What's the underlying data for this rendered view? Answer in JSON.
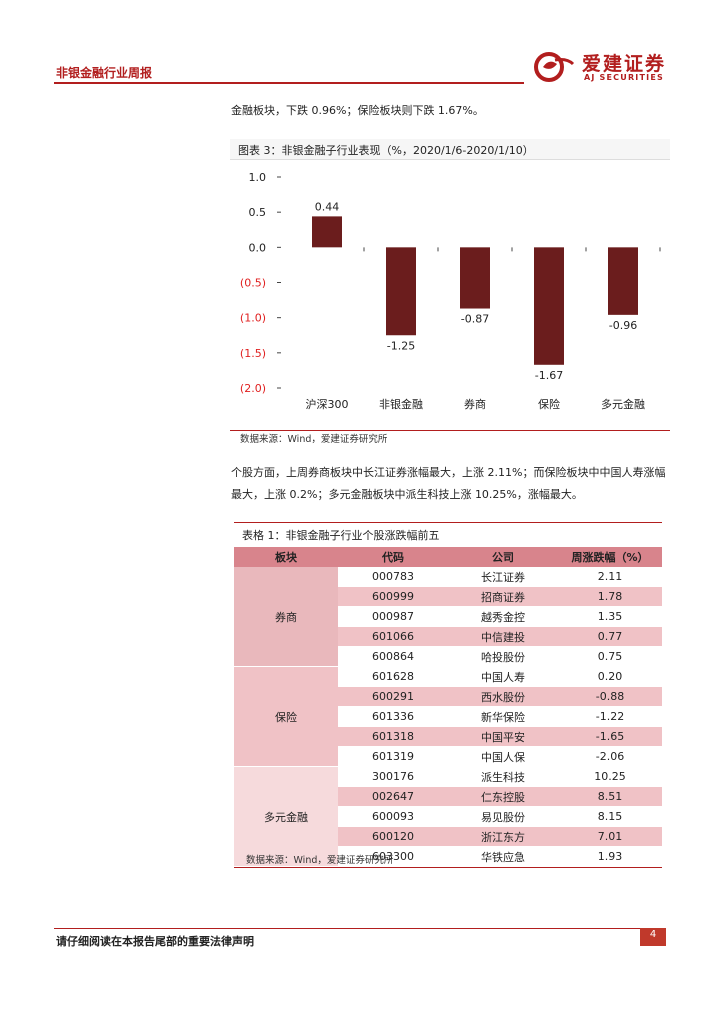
{
  "header": {
    "report_title": "非银金融行业周报",
    "brand_cn": "爱建证券",
    "brand_en": "AJ SECURITIES"
  },
  "intro_text": "金融板块，下跌 0.96%；保险板块则下跌 1.67%。",
  "chart": {
    "caption": "图表 3：非银金融子行业表现（%，2020/1/6-2020/1/10）",
    "source": "数据来源：Wind，爱建证券研究所"
  },
  "chart_data": {
    "type": "bar",
    "title": "图表 3：非银金融子行业表现（%，2020/1/6-2020/1/10）",
    "categories": [
      "沪深300",
      "非银金融",
      "券商",
      "保险",
      "多元金融"
    ],
    "values": [
      0.44,
      -1.25,
      -0.87,
      -1.67,
      -0.96
    ],
    "value_labels": [
      "0.44",
      "-1.25",
      "-0.87",
      "-1.67",
      "-0.96"
    ],
    "ytick_labels": [
      "1.0",
      "0.5",
      "0.0",
      "(0.5)",
      "(1.0)",
      "(1.5)",
      "(2.0)"
    ],
    "ytick_values": [
      1.0,
      0.5,
      0.0,
      -0.5,
      -1.0,
      -1.5,
      -2.0
    ],
    "ylim": [
      -2.0,
      1.0
    ],
    "bar_color": "#6b1d1d",
    "negative_tick_color": "#e02020",
    "grid": false,
    "xlabel": "",
    "ylabel": ""
  },
  "paragraph": "个股方面，上周券商板块中长江证券涨幅最大，上涨 2.11%；而保险板块中中国人寿涨幅最大，上涨 0.2%；多元金融板块中派生科技上涨 10.25%，涨幅最大。",
  "table": {
    "caption": "表格 1：非银金融子行业个股涨跌幅前五",
    "headers": [
      "板块",
      "代码",
      "公司",
      "周涨跌幅（%）"
    ],
    "groups": [
      {
        "sector": "券商",
        "rows": [
          {
            "code": "000783",
            "company": "长江证券",
            "change": "2.11"
          },
          {
            "code": "600999",
            "company": "招商证券",
            "change": "1.78"
          },
          {
            "code": "000987",
            "company": "越秀金控",
            "change": "1.35"
          },
          {
            "code": "601066",
            "company": "中信建投",
            "change": "0.77"
          },
          {
            "code": "600864",
            "company": "哈投股份",
            "change": "0.75"
          }
        ]
      },
      {
        "sector": "保险",
        "rows": [
          {
            "code": "601628",
            "company": "中国人寿",
            "change": "0.20"
          },
          {
            "code": "600291",
            "company": "西水股份",
            "change": "-0.88"
          },
          {
            "code": "601336",
            "company": "新华保险",
            "change": "-1.22"
          },
          {
            "code": "601318",
            "company": "中国平安",
            "change": "-1.65"
          },
          {
            "code": "601319",
            "company": "中国人保",
            "change": "-2.06"
          }
        ]
      },
      {
        "sector": "多元金融",
        "rows": [
          {
            "code": "300176",
            "company": "派生科技",
            "change": "10.25"
          },
          {
            "code": "002647",
            "company": "仁东控股",
            "change": "8.51"
          },
          {
            "code": "600093",
            "company": "易见股份",
            "change": "8.15"
          },
          {
            "code": "600120",
            "company": "浙江东方",
            "change": "7.01"
          },
          {
            "code": "603300",
            "company": "华铁应急",
            "change": "1.93"
          }
        ]
      }
    ],
    "source": "数据来源：Wind，爱建证券研究所"
  },
  "footer": {
    "disclaimer": "请仔细阅读在本报告尾部的重要法律声明",
    "page_number": "4"
  }
}
